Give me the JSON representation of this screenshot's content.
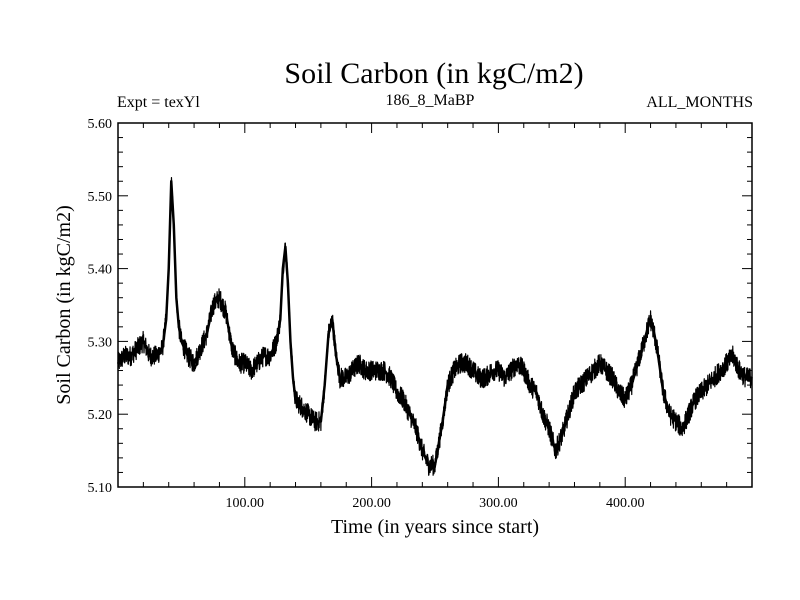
{
  "chart_data": {
    "type": "line",
    "title": "Soil Carbon (in kgC/m2)",
    "subtitle_left": "Expt = texYl",
    "subtitle_center": "186_8_MaBP",
    "subtitle_right": "ALL_MONTHS",
    "xlabel": "Time (in years since start)",
    "ylabel": "Soil Carbon (in kgC/m2)",
    "xlim": [
      0,
      500
    ],
    "ylim": [
      5.1,
      5.6
    ],
    "x_ticks": [
      100,
      200,
      300,
      400
    ],
    "x_tick_labels": [
      "100.00",
      "200.00",
      "300.00",
      "400.00"
    ],
    "y_ticks": [
      5.1,
      5.2,
      5.3,
      5.4,
      5.5,
      5.6
    ],
    "y_tick_labels": [
      "5.10",
      "5.20",
      "5.30",
      "5.40",
      "5.50",
      "5.60"
    ],
    "grid": false,
    "line_color": "#000000",
    "series": [
      {
        "x": [
          0,
          5,
          10,
          15,
          20,
          25,
          30,
          35,
          38,
          40,
          42,
          44,
          46,
          48,
          50,
          55,
          60,
          65,
          70,
          75,
          80,
          85,
          90,
          95,
          100,
          105,
          110,
          115,
          120,
          125,
          128,
          130,
          132,
          134,
          136,
          138,
          140,
          145,
          150,
          155,
          160,
          163,
          166,
          169,
          172,
          175,
          180,
          185,
          190,
          195,
          200,
          205,
          210,
          215,
          220,
          225,
          230,
          235,
          240,
          245,
          250,
          253,
          256,
          260,
          265,
          270,
          275,
          280,
          285,
          290,
          295,
          300,
          305,
          310,
          315,
          320,
          325,
          330,
          335,
          340,
          345,
          350,
          355,
          360,
          365,
          370,
          375,
          380,
          385,
          390,
          395,
          400,
          405,
          410,
          415,
          418,
          420,
          423,
          426,
          430,
          435,
          440,
          445,
          450,
          455,
          460,
          465,
          470,
          475,
          480,
          485,
          490,
          495,
          500
        ],
        "values": [
          5.27,
          5.28,
          5.28,
          5.29,
          5.3,
          5.28,
          5.28,
          5.29,
          5.33,
          5.4,
          5.52,
          5.46,
          5.36,
          5.32,
          5.3,
          5.28,
          5.27,
          5.29,
          5.31,
          5.35,
          5.36,
          5.34,
          5.29,
          5.27,
          5.27,
          5.26,
          5.27,
          5.28,
          5.28,
          5.3,
          5.33,
          5.4,
          5.43,
          5.38,
          5.3,
          5.25,
          5.22,
          5.21,
          5.2,
          5.19,
          5.19,
          5.24,
          5.31,
          5.33,
          5.28,
          5.25,
          5.25,
          5.26,
          5.27,
          5.26,
          5.26,
          5.26,
          5.26,
          5.25,
          5.23,
          5.22,
          5.2,
          5.18,
          5.15,
          5.13,
          5.13,
          5.16,
          5.19,
          5.24,
          5.26,
          5.27,
          5.27,
          5.26,
          5.25,
          5.25,
          5.26,
          5.26,
          5.25,
          5.26,
          5.27,
          5.26,
          5.24,
          5.23,
          5.2,
          5.18,
          5.15,
          5.17,
          5.2,
          5.23,
          5.24,
          5.25,
          5.26,
          5.27,
          5.26,
          5.25,
          5.23,
          5.22,
          5.24,
          5.27,
          5.3,
          5.32,
          5.33,
          5.31,
          5.28,
          5.23,
          5.2,
          5.19,
          5.18,
          5.2,
          5.22,
          5.23,
          5.24,
          5.25,
          5.26,
          5.27,
          5.28,
          5.26,
          5.25,
          5.25
        ]
      }
    ]
  }
}
